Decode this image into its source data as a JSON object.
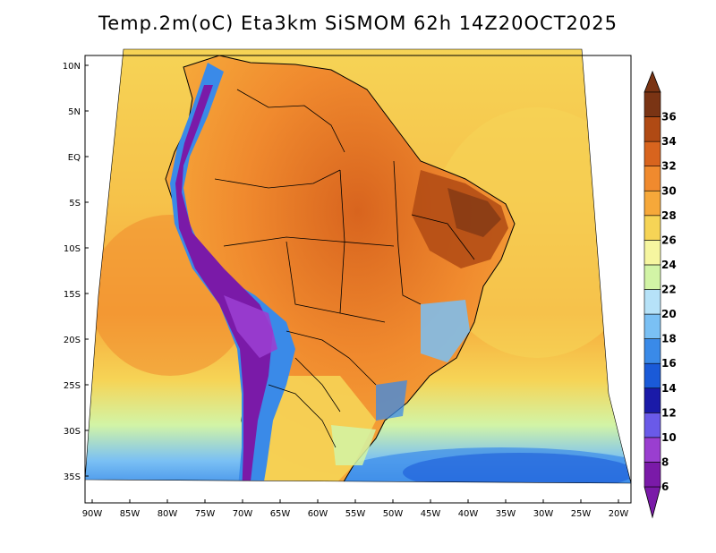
{
  "title": "Temp.2m(oC) Eta3km SiSMOM 62h 14Z20OCT2025",
  "lat_labels": [
    "10N",
    "5N",
    "EQ",
    "5S",
    "10S",
    "15S",
    "20S",
    "25S",
    "30S",
    "35S"
  ],
  "lon_labels": [
    "90W",
    "85W",
    "80W",
    "75W",
    "70W",
    "65W",
    "60W",
    "55W",
    "50W",
    "45W",
    "40W",
    "35W",
    "30W",
    "25W",
    "20W"
  ],
  "colorbar": {
    "levels": [
      "6",
      "8",
      "10",
      "12",
      "14",
      "16",
      "18",
      "20",
      "22",
      "24",
      "26",
      "28",
      "30",
      "32",
      "34",
      "36"
    ],
    "colors": [
      "#7a1aa8",
      "#9a3ed0",
      "#6a5ae8",
      "#1a1aa8",
      "#1a5ad8",
      "#3a8ae8",
      "#7ac0f4",
      "#b6e2f8",
      "#d2f4a6",
      "#f6f6a0",
      "#f6d456",
      "#f6a83a",
      "#f08a2e",
      "#d8641e",
      "#b04a14",
      "#7a3414"
    ]
  },
  "legend_semantics": "Temperature at 2 m in degrees Celsius",
  "colors": {
    "ocean_warm": "#f6a83a",
    "ocean_mid": "#f6d456",
    "land_hot": "#d8641e",
    "andes_cold": "#7a1aa8",
    "south_cool": "#7ac0f4"
  }
}
